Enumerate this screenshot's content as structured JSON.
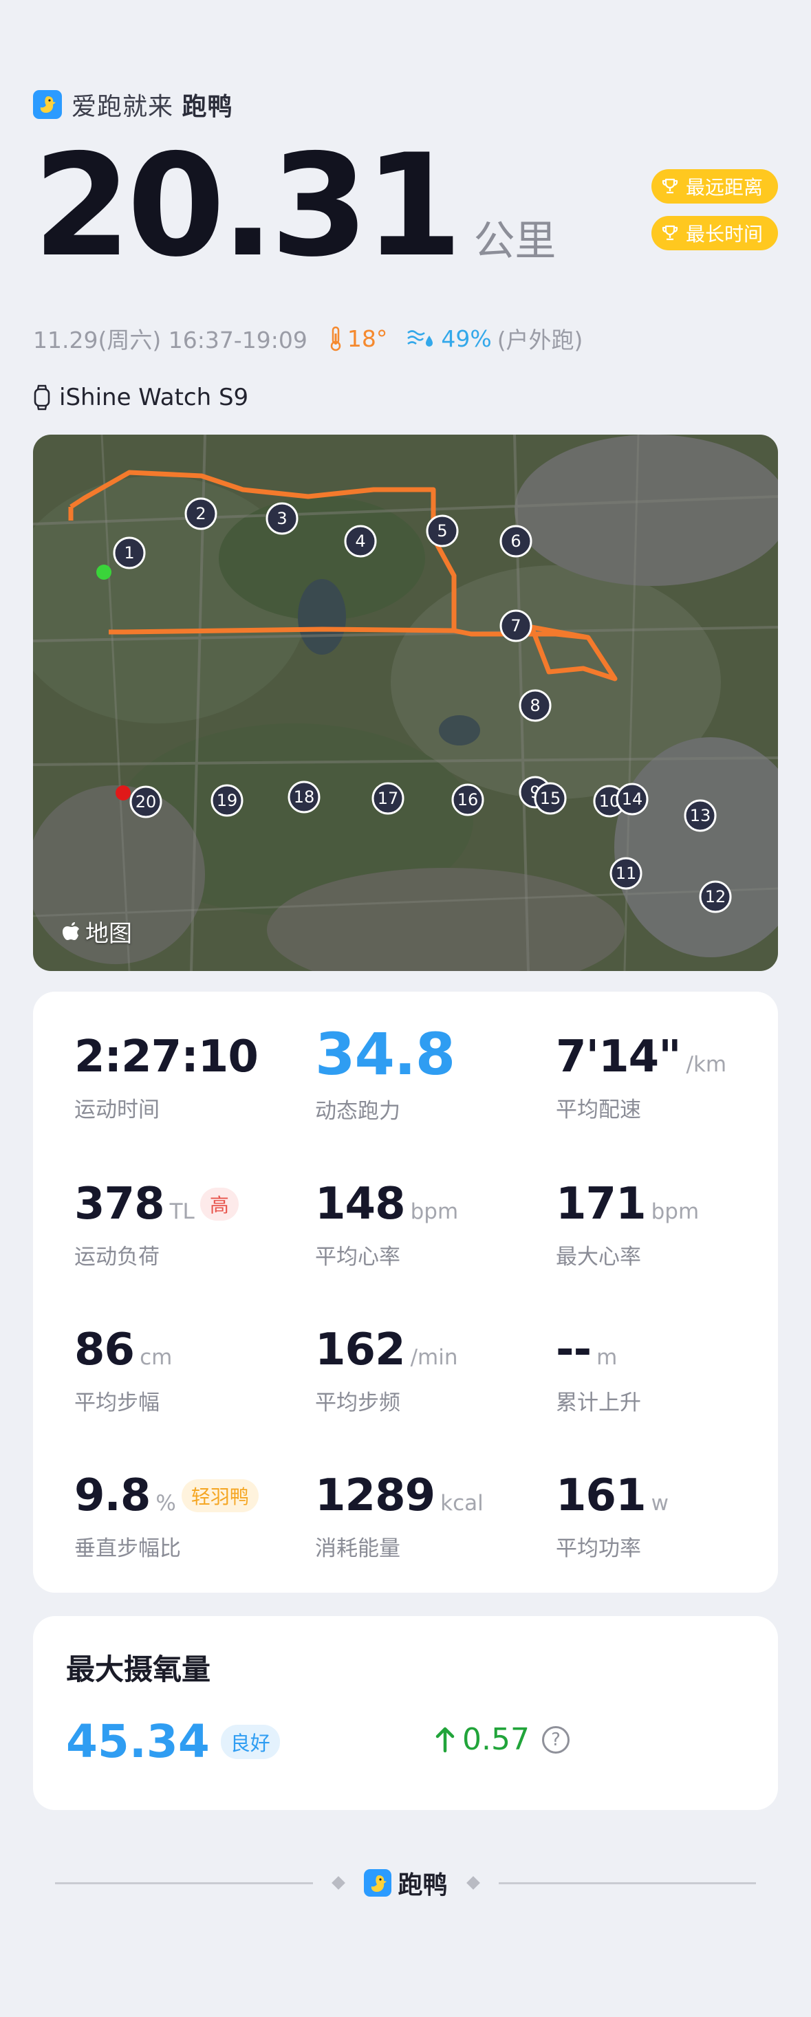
{
  "header": {
    "slogan": "爱跑就来",
    "app_name": "跑鸭",
    "distance": "20.31",
    "distance_unit": "公里",
    "badges": [
      "最远距离",
      "最长时间"
    ]
  },
  "meta": {
    "date_time": "11.29(周六) 16:37-19:09",
    "temperature": "18°",
    "humidity": "49%",
    "run_type": "(户外跑)"
  },
  "device": {
    "name": "iShine Watch S9"
  },
  "map": {
    "attribution": "地图",
    "markers": [
      "1",
      "2",
      "3",
      "4",
      "5",
      "6",
      "7",
      "8",
      "9",
      "15",
      "10",
      "14",
      "13",
      "11",
      "12",
      "16",
      "17",
      "18",
      "19",
      "20"
    ]
  },
  "stats": {
    "duration": {
      "value": "2:27:10",
      "label": "运动时间"
    },
    "running_power": {
      "value": "34.8",
      "label": "动态跑力"
    },
    "avg_pace": {
      "value": "7'14\"",
      "unit": "/km",
      "label": "平均配速"
    },
    "training_load": {
      "value": "378",
      "unit": "TL",
      "tag": "高",
      "label": "运动负荷"
    },
    "avg_hr": {
      "value": "148",
      "unit": "bpm",
      "label": "平均心率"
    },
    "max_hr": {
      "value": "171",
      "unit": "bpm",
      "label": "最大心率"
    },
    "avg_stride": {
      "value": "86",
      "unit": "cm",
      "label": "平均步幅"
    },
    "avg_cadence": {
      "value": "162",
      "unit": "/min",
      "label": "平均步频"
    },
    "elevation_gain": {
      "value": "--",
      "unit": "m",
      "label": "累计上升"
    },
    "vertical_ratio": {
      "value": "9.8",
      "unit": "%",
      "tag": "轻羽鸭",
      "label": "垂直步幅比"
    },
    "calories": {
      "value": "1289",
      "unit": "kcal",
      "label": "消耗能量"
    },
    "avg_power": {
      "value": "161",
      "unit": "w",
      "label": "平均功率"
    }
  },
  "vo2max": {
    "title": "最大摄氧量",
    "value": "45.34",
    "rating": "良好",
    "delta": "0.57"
  },
  "footer": {
    "app_name": "跑鸭"
  },
  "colors": {
    "accent_blue": "#2f9df2",
    "badge_gold": "#ffc81f",
    "route_orange": "#f47a2c",
    "delta_green": "#21a43a",
    "tag_red": "#e8554d"
  }
}
